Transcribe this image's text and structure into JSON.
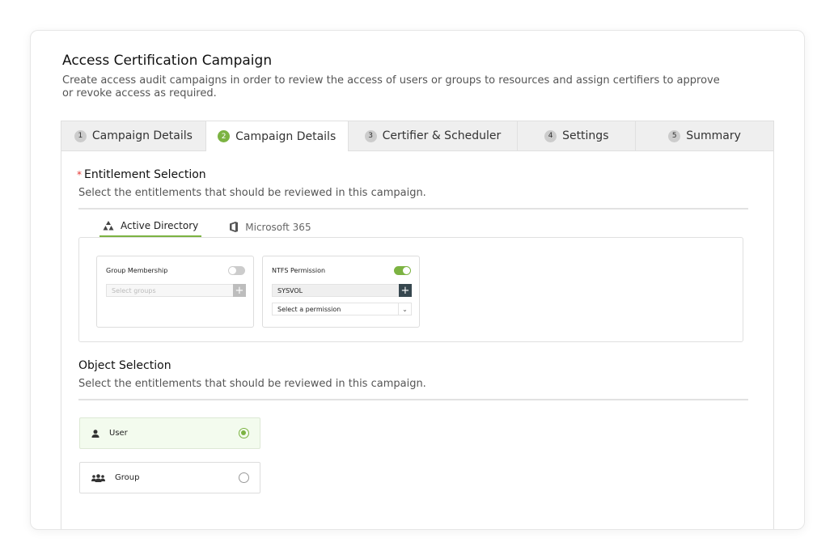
{
  "header": {
    "title": "Access Certification Campaign",
    "description": "Create access audit campaigns in order to review the access of users or groups to resources and assign certifiers to approve or revoke access as required."
  },
  "steps": [
    {
      "num": "1",
      "label": "Campaign Details"
    },
    {
      "num": "2",
      "label": "Campaign Details",
      "active": true
    },
    {
      "num": "3",
      "label": "Certifier & Scheduler"
    },
    {
      "num": "4",
      "label": "Settings"
    },
    {
      "num": "5",
      "label": "Summary"
    }
  ],
  "entitlement": {
    "required_mark": "*",
    "title": "Entitlement Selection",
    "subtitle": "Select the entitlements that should be reviewed in this campaign.",
    "sources": [
      {
        "label": "Active Directory",
        "icon": "active-directory-icon",
        "active": true
      },
      {
        "label": "Microsoft 365",
        "icon": "office-icon"
      }
    ],
    "group_membership": {
      "label": "Group Membership",
      "enabled": false,
      "placeholder": "Select groups"
    },
    "ntfs": {
      "label": "NTFS Permission",
      "enabled": true,
      "value": "SYSVOL",
      "permission_placeholder": "Select a permission"
    }
  },
  "object": {
    "title": "Object Selection",
    "subtitle": "Select the entitlements that should be reviewed in this campaign.",
    "options": [
      {
        "label": "User",
        "icon": "user-icon",
        "selected": true
      },
      {
        "label": "Group",
        "icon": "group-icon",
        "selected": false
      }
    ]
  },
  "colors": {
    "accent": "#7cb342",
    "selected_bg": "#f3fbee"
  }
}
